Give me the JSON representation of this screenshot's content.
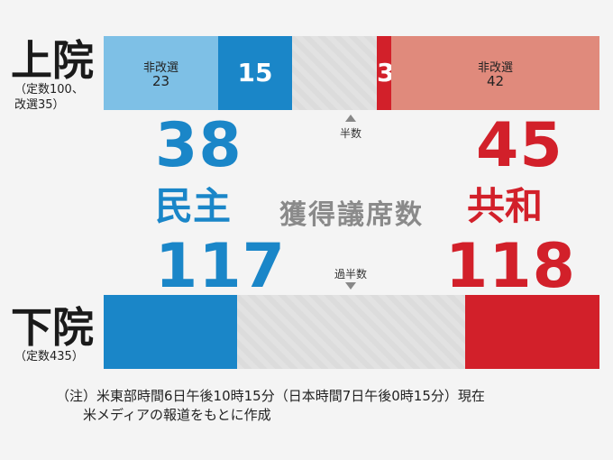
{
  "colors": {
    "dem_dark": "#1a86c8",
    "dem_light": "#7ec0e6",
    "rep_dark": "#d2202a",
    "rep_light": "#e08a7c",
    "undecided": "#e0e0e0"
  },
  "senate": {
    "name": "上院",
    "sub1": "（定数100、",
    "sub2": "改選35）",
    "majority_label": "半数",
    "dem_total": "38",
    "rep_total": "45"
  },
  "house": {
    "name": "下院",
    "sub": "（定数435）",
    "majority_label": "過半数",
    "dem_total": "117",
    "rep_total": "118"
  },
  "parties": {
    "dem": "民主",
    "rep": "共和"
  },
  "center_title": "獲得議席数",
  "note_line1": "（注）米東部時間6日午後10時15分（日本時間7日午後0時15分）現在",
  "note_line2": "米メディアの報道をもとに作成",
  "chart_data": [
    {
      "type": "bar",
      "title": "上院",
      "total_seats": 100,
      "majority_marker": 50,
      "segments": [
        {
          "party": "民主",
          "label1": "非改選",
          "label2": "23",
          "value": 23,
          "color": "#7ec0e6"
        },
        {
          "party": "民主",
          "label1": "",
          "label2": "15",
          "value": 15,
          "color": "#1a86c8"
        },
        {
          "party": "",
          "label1": "",
          "label2": "",
          "value": 17,
          "color": "#e0e0e0"
        },
        {
          "party": "共和",
          "label1": "",
          "label2": "3",
          "value": 3,
          "color": "#d2202a"
        },
        {
          "party": "共和",
          "label1": "非改選",
          "label2": "42",
          "value": 42,
          "color": "#e08a7c"
        }
      ]
    },
    {
      "type": "bar",
      "title": "下院",
      "total_seats": 435,
      "majority_marker": 218,
      "segments": [
        {
          "party": "民主",
          "value": 117,
          "color": "#1a86c8"
        },
        {
          "party": "",
          "value": 200,
          "color": "#e0e0e0"
        },
        {
          "party": "共和",
          "value": 118,
          "color": "#d2202a"
        }
      ]
    }
  ]
}
